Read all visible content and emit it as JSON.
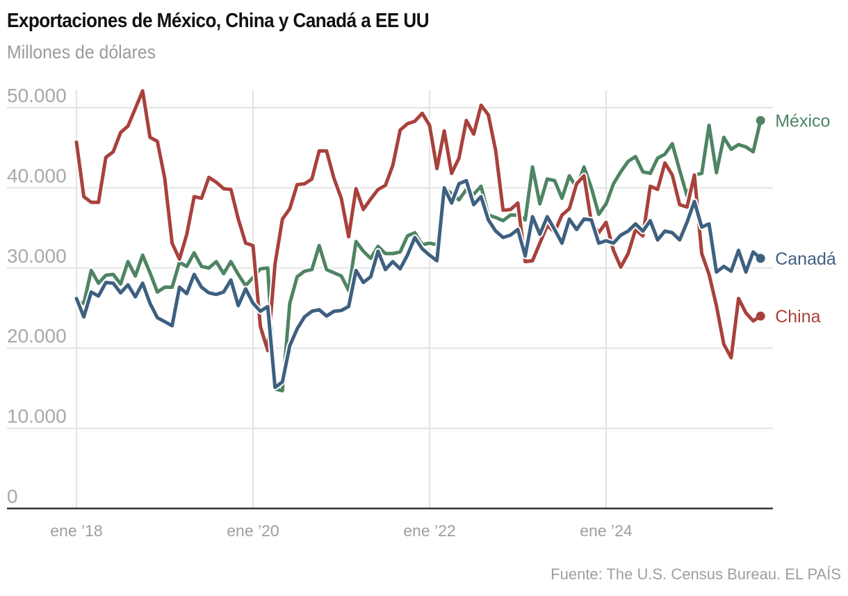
{
  "chart_data": {
    "type": "line",
    "title": "Exportaciones de México, China y Canadá a EE UU",
    "subtitle": "Millones de dólares",
    "source": "Fuente: The U.S. Census Bureau. EL PAÍS",
    "xlabel": "",
    "ylabel": "",
    "ylim": [
      0,
      50000
    ],
    "yticks": [
      0,
      10000,
      20000,
      30000,
      40000,
      50000
    ],
    "ytick_labels": [
      "0",
      "10.000",
      "20.000",
      "30.000",
      "40.000",
      "50.000"
    ],
    "x_start": "2018-01",
    "x_end": "2025-10",
    "xticks": [
      0,
      24,
      48,
      72
    ],
    "xtick_labels": [
      "ene ’18",
      "ene ’20",
      "ene ’22",
      "ene ’24"
    ],
    "grid": true,
    "legend": "direct-labels-right",
    "series": [
      {
        "name": "México",
        "color": "#4e8463",
        "values": [
          25700,
          25600,
          29700,
          28100,
          29100,
          29200,
          28000,
          30800,
          29000,
          31600,
          29400,
          27000,
          27600,
          27600,
          30700,
          30200,
          31900,
          30200,
          30000,
          30800,
          29300,
          30800,
          29200,
          27800,
          28800,
          29900,
          30000,
          14900,
          14700,
          25600,
          28900,
          29600,
          29800,
          32800,
          29800,
          29400,
          29000,
          27200,
          33300,
          32100,
          31200,
          32700,
          31800,
          31800,
          32000,
          34000,
          34400,
          32900,
          33100,
          32900,
          39900,
          39300,
          38500,
          39800,
          39200,
          40200,
          36600,
          36300,
          35900,
          36600,
          36600,
          36000,
          42600,
          38000,
          41100,
          40900,
          38700,
          41500,
          40000,
          42600,
          40000,
          36700,
          38000,
          40500,
          42000,
          43300,
          43900,
          42000,
          41800,
          43700,
          44200,
          45500,
          42200,
          39000,
          41600,
          41800,
          47800,
          41900,
          46300,
          44800,
          45400,
          45100,
          44500,
          48400
        ]
      },
      {
        "name": "China",
        "color": "#a8413c",
        "values": [
          45700,
          38900,
          38200,
          38200,
          43800,
          44500,
          46900,
          47700,
          49900,
          52100,
          46300,
          45800,
          41200,
          33100,
          31100,
          34200,
          38900,
          38700,
          41300,
          40700,
          39900,
          39800,
          36100,
          33100,
          32800,
          22700,
          19700,
          30500,
          36100,
          37400,
          40400,
          40500,
          41100,
          44600,
          44600,
          41200,
          38700,
          33900,
          39900,
          37300,
          38600,
          39800,
          40300,
          42800,
          47200,
          48000,
          48300,
          49300,
          47800,
          42400,
          47100,
          41800,
          43700,
          48400,
          46700,
          50300,
          49100,
          44600,
          37200,
          37300,
          38100,
          30800,
          30900,
          33100,
          35300,
          34500,
          36600,
          37400,
          40500,
          41500,
          35700,
          34400,
          35700,
          32200,
          30100,
          31800,
          34800,
          34000,
          40200,
          39800,
          43100,
          41600,
          37900,
          37600,
          41600,
          31800,
          29200,
          25300,
          20500,
          18800,
          26200,
          24400,
          23400,
          24000
        ]
      },
      {
        "name": "Canadá",
        "color": "#3e6080",
        "values": [
          26200,
          23900,
          27000,
          26500,
          28200,
          28100,
          26900,
          27900,
          26400,
          28100,
          25600,
          23800,
          23300,
          22800,
          27600,
          26800,
          29200,
          27600,
          26900,
          26700,
          27000,
          28500,
          25300,
          27400,
          25600,
          24600,
          25200,
          15100,
          15800,
          20300,
          22400,
          23900,
          24600,
          24800,
          24000,
          24600,
          24700,
          25200,
          29700,
          28200,
          28900,
          32100,
          29800,
          30800,
          29900,
          31600,
          33800,
          32400,
          31600,
          30900,
          40000,
          38100,
          40500,
          40900,
          37900,
          38900,
          36000,
          34600,
          33800,
          34100,
          34800,
          31500,
          36400,
          34200,
          36400,
          34800,
          33100,
          36100,
          34800,
          36100,
          36000,
          33100,
          33400,
          33100,
          34100,
          34600,
          35500,
          34600,
          35900,
          33500,
          34600,
          34400,
          33500,
          35700,
          38300,
          35100,
          35500,
          29500,
          30200,
          29600,
          32200,
          29500,
          32000,
          31200
        ]
      }
    ]
  }
}
